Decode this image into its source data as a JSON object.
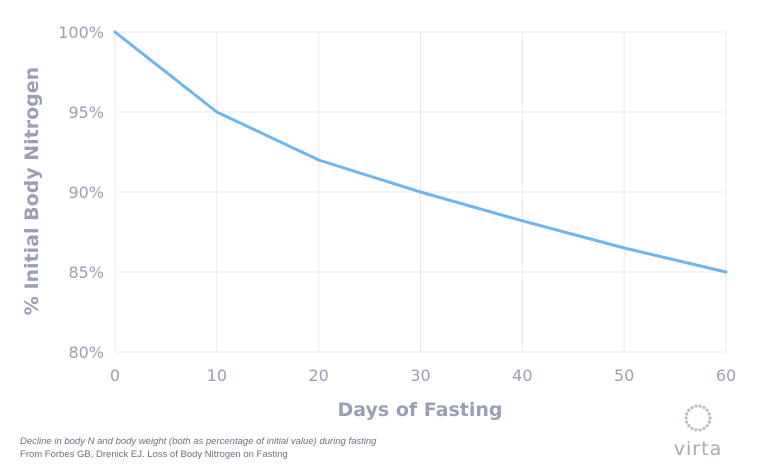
{
  "chart_data": {
    "type": "line",
    "title": "",
    "xlabel": "Days of Fasting",
    "ylabel": "% Initial Body Nitrogen",
    "xlim": [
      0,
      60
    ],
    "ylim": [
      80,
      100
    ],
    "x_ticks": [
      "0",
      "10",
      "20",
      "30",
      "40",
      "50",
      "60"
    ],
    "y_ticks": [
      "80%",
      "85%",
      "90%",
      "95%",
      "100%"
    ],
    "grid": "vertical and horizontal",
    "legend": "none",
    "series": [
      {
        "color": "#6db7ee",
        "x": [
          0,
          10,
          20,
          30,
          40,
          50,
          60
        ],
        "y": [
          100,
          95,
          92,
          90,
          88.2,
          86.5,
          85
        ]
      }
    ]
  },
  "footnote": {
    "line1": "Decline in body N and body weight (both as percentage of initial value) during fasting",
    "line2": "From Forbes GB, Drenick EJ. Loss of Body Nitrogen on Fasting"
  },
  "brand": {
    "name": "virta",
    "logo_icon": "dotted-ring-logo-icon"
  }
}
